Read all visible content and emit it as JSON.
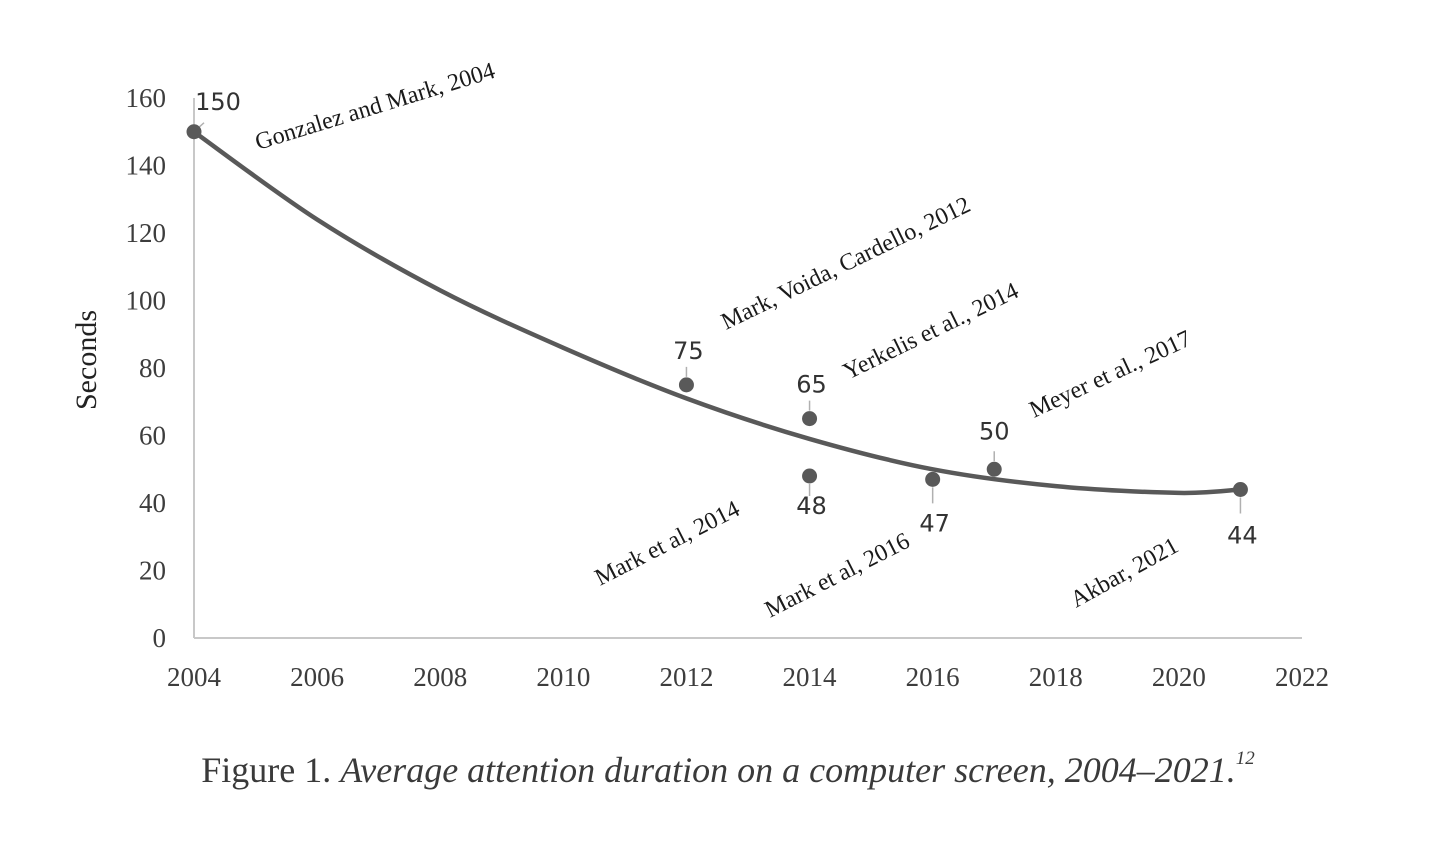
{
  "chart_data": {
    "type": "scatter",
    "ylabel": "Seconds",
    "xlabel": "",
    "xlim": [
      2004,
      2022
    ],
    "ylim": [
      0,
      160
    ],
    "x_ticks": [
      "2004",
      "2006",
      "2008",
      "2010",
      "2012",
      "2014",
      "2016",
      "2018",
      "2020",
      "2022"
    ],
    "y_ticks": [
      "0",
      "20",
      "40",
      "60",
      "80",
      "100",
      "120",
      "140",
      "160"
    ],
    "grid": false,
    "legend": "none",
    "marker_color": "#595959",
    "points": [
      {
        "x": 2004,
        "y": 150,
        "label": "150",
        "source": "Gonzalez and Mark, 2004"
      },
      {
        "x": 2012,
        "y": 75,
        "label": "75",
        "source": "Mark, Voida, Cardello, 2012"
      },
      {
        "x": 2014,
        "y": 65,
        "label": "65",
        "source": "Yerkelis et al., 2014"
      },
      {
        "x": 2014,
        "y": 48,
        "label": "48",
        "source": "Mark et al, 2014"
      },
      {
        "x": 2016,
        "y": 47,
        "label": "47",
        "source": "Mark et al, 2016"
      },
      {
        "x": 2017,
        "y": 50,
        "label": "50",
        "source": "Meyer et al., 2017"
      },
      {
        "x": 2021,
        "y": 44,
        "label": "44",
        "source": "Akbar, 2021"
      }
    ],
    "trendline": {
      "type": "polynomial",
      "color": "#595959",
      "x": [
        2004,
        2006,
        2008,
        2010,
        2012,
        2014,
        2016,
        2018,
        2020,
        2021
      ],
      "y": [
        150,
        124,
        103,
        86,
        71,
        59,
        50,
        45,
        43,
        44
      ]
    }
  },
  "caption": {
    "prefix": "Figure 1.",
    "title": "Average attention duration on a computer screen, 2004–2021.",
    "note": "12"
  }
}
